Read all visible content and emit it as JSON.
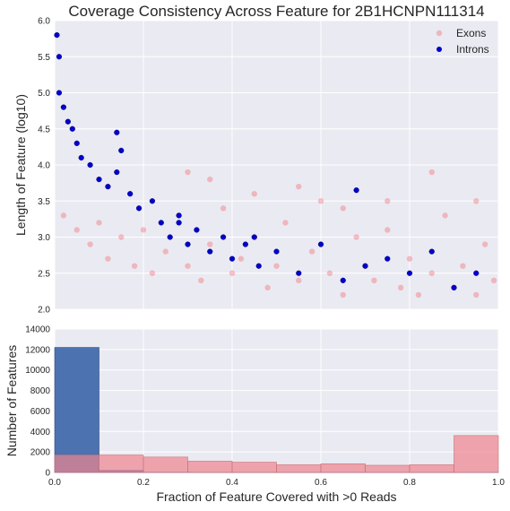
{
  "chart_data": [
    {
      "type": "scatter",
      "title": "Coverage Consistency Across Feature for 2B1HCNPN111314",
      "xlabel": "",
      "ylabel": "Length of Feature (log10)",
      "xlim": [
        0.0,
        1.0
      ],
      "ylim": [
        2.0,
        6.0
      ],
      "x_ticks": [
        0.0,
        0.2,
        0.4,
        0.6,
        0.8,
        1.0
      ],
      "y_ticks": [
        "2.0",
        "2.5",
        "3.0",
        "3.5",
        "4.0",
        "4.5",
        "5.0",
        "5.5",
        "6.0"
      ],
      "grid": true,
      "legend_position": "top-right",
      "series": [
        {
          "name": "Exons",
          "color": "#ff0000",
          "alpha": 0.22,
          "description_note_counts": null,
          "points": [
            [
              0.02,
              3.3
            ],
            [
              0.05,
              3.1
            ],
            [
              0.08,
              2.9
            ],
            [
              0.1,
              3.2
            ],
            [
              0.12,
              2.7
            ],
            [
              0.15,
              3.0
            ],
            [
              0.18,
              2.6
            ],
            [
              0.2,
              3.1
            ],
            [
              0.22,
              2.5
            ],
            [
              0.25,
              2.8
            ],
            [
              0.28,
              3.3
            ],
            [
              0.3,
              2.6
            ],
            [
              0.33,
              2.4
            ],
            [
              0.35,
              2.9
            ],
            [
              0.38,
              3.4
            ],
            [
              0.4,
              2.5
            ],
            [
              0.42,
              2.7
            ],
            [
              0.45,
              3.0
            ],
            [
              0.48,
              2.3
            ],
            [
              0.5,
              2.6
            ],
            [
              0.52,
              3.2
            ],
            [
              0.55,
              2.4
            ],
            [
              0.58,
              2.8
            ],
            [
              0.6,
              3.5
            ],
            [
              0.62,
              2.5
            ],
            [
              0.65,
              2.2
            ],
            [
              0.68,
              3.0
            ],
            [
              0.7,
              2.6
            ],
            [
              0.72,
              2.4
            ],
            [
              0.75,
              3.1
            ],
            [
              0.78,
              2.3
            ],
            [
              0.8,
              2.7
            ],
            [
              0.82,
              2.2
            ],
            [
              0.85,
              2.5
            ],
            [
              0.88,
              3.3
            ],
            [
              0.9,
              2.3
            ],
            [
              0.92,
              2.6
            ],
            [
              0.95,
              2.2
            ],
            [
              0.97,
              2.9
            ],
            [
              0.99,
              2.4
            ],
            [
              0.3,
              3.9
            ],
            [
              0.35,
              3.8
            ],
            [
              0.45,
              3.6
            ],
            [
              0.55,
              3.7
            ],
            [
              0.65,
              3.4
            ],
            [
              0.75,
              3.5
            ],
            [
              0.85,
              3.9
            ],
            [
              0.95,
              3.5
            ]
          ]
        },
        {
          "name": "Introns",
          "color": "#0000cc",
          "alpha": 1.0,
          "points": [
            [
              0.005,
              5.8
            ],
            [
              0.01,
              5.5
            ],
            [
              0.01,
              5.0
            ],
            [
              0.02,
              4.8
            ],
            [
              0.03,
              4.6
            ],
            [
              0.04,
              4.5
            ],
            [
              0.05,
              4.3
            ],
            [
              0.06,
              4.1
            ],
            [
              0.08,
              4.0
            ],
            [
              0.1,
              3.8
            ],
            [
              0.12,
              3.7
            ],
            [
              0.14,
              3.9
            ],
            [
              0.15,
              4.2
            ],
            [
              0.17,
              3.6
            ],
            [
              0.19,
              3.4
            ],
            [
              0.22,
              3.5
            ],
            [
              0.24,
              3.2
            ],
            [
              0.26,
              3.0
            ],
            [
              0.28,
              3.3
            ],
            [
              0.3,
              2.9
            ],
            [
              0.32,
              3.1
            ],
            [
              0.35,
              2.8
            ],
            [
              0.38,
              3.0
            ],
            [
              0.4,
              2.7
            ],
            [
              0.43,
              2.9
            ],
            [
              0.46,
              2.6
            ],
            [
              0.5,
              2.8
            ],
            [
              0.55,
              2.5
            ],
            [
              0.6,
              2.9
            ],
            [
              0.65,
              2.4
            ],
            [
              0.7,
              2.6
            ],
            [
              0.75,
              2.7
            ],
            [
              0.8,
              2.5
            ],
            [
              0.85,
              2.8
            ],
            [
              0.9,
              2.3
            ],
            [
              0.95,
              2.5
            ],
            [
              0.14,
              4.45
            ],
            [
              0.28,
              3.2
            ],
            [
              0.45,
              3.0
            ],
            [
              0.68,
              3.65
            ]
          ]
        }
      ]
    },
    {
      "type": "bar",
      "title": "",
      "xlabel": "Fraction of Feature Covered with >0 Reads",
      "ylabel": "Number of Features",
      "xlim": [
        0.0,
        1.0
      ],
      "ylim": [
        0,
        14000
      ],
      "x_ticks": [
        "0.0",
        "0.2",
        "0.4",
        "0.6",
        "0.8",
        "1.0"
      ],
      "y_ticks": [
        "0",
        "2000",
        "4000",
        "6000",
        "8000",
        "10000",
        "12000",
        "14000"
      ],
      "grid": true,
      "bin_edges": [
        0.0,
        0.1,
        0.2,
        0.3,
        0.4,
        0.5,
        0.6,
        0.7,
        0.8,
        0.9,
        1.0
      ],
      "series": [
        {
          "name": "Introns",
          "color": "#4c72b0",
          "values": [
            12200,
            200,
            20,
            10,
            10,
            5,
            5,
            5,
            5,
            5
          ]
        },
        {
          "name": "Exons",
          "color": "#f0858f",
          "values": [
            1700,
            1700,
            1500,
            1100,
            1000,
            750,
            850,
            700,
            750,
            3600
          ]
        }
      ]
    }
  ]
}
